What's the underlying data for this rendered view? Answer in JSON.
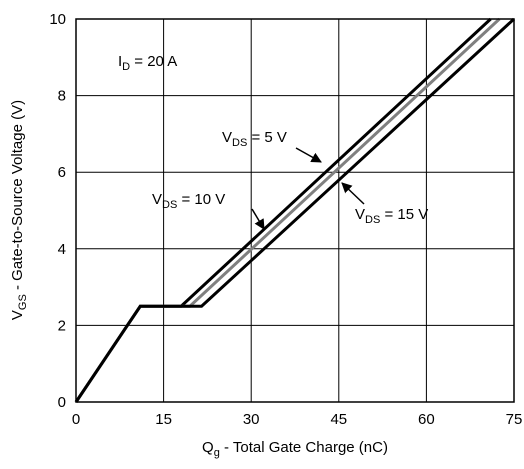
{
  "chart_data": {
    "type": "line",
    "title": "",
    "xlabel": {
      "main": "Q",
      "sub": "g",
      "rest": " - Total Gate Charge (nC)"
    },
    "ylabel": {
      "main": "V",
      "sub": "GS",
      "rest": " - Gate-to-Source Voltage (V)"
    },
    "xlim": [
      0,
      75
    ],
    "ylim": [
      0,
      10
    ],
    "xticks": [
      0,
      15,
      30,
      45,
      60,
      75
    ],
    "yticks": [
      0,
      2,
      4,
      6,
      8,
      10
    ],
    "grid": true,
    "annotations": [
      {
        "id": "id-label",
        "main": "I",
        "sub": "D",
        "rest": " = 20 A"
      },
      {
        "id": "vds5-label",
        "main": "V",
        "sub": "DS",
        "rest": " = 5 V"
      },
      {
        "id": "vds10-label",
        "main": "V",
        "sub": "DS",
        "rest": " = 10 V"
      },
      {
        "id": "vds15-label",
        "main": "V",
        "sub": "DS",
        "rest": " = 15 V"
      }
    ],
    "series": [
      {
        "x": [
          0,
          11,
          18,
          71
        ],
        "y": [
          0,
          2.5,
          2.5,
          10
        ],
        "color": "#000000"
      },
      {
        "x": [
          0,
          11,
          19.5,
          72.5
        ],
        "y": [
          0,
          2.5,
          2.5,
          10
        ],
        "color": "#808080"
      },
      {
        "x": [
          0,
          11,
          21.5,
          75
        ],
        "y": [
          0,
          2.5,
          2.5,
          10
        ],
        "color": "#000000"
      }
    ]
  }
}
